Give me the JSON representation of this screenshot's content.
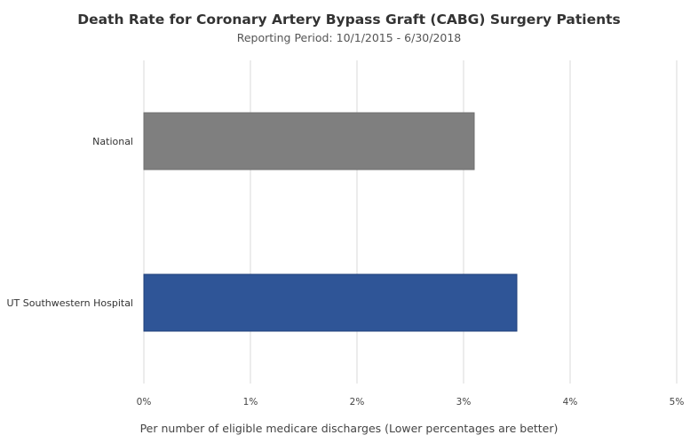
{
  "chart_data": {
    "type": "bar",
    "orientation": "horizontal",
    "title": "Death Rate for Coronary Artery Bypass Graft (CABG) Surgery Patients",
    "subtitle": "Reporting Period: 10/1/2015 - 6/30/2018",
    "categories": [
      "National",
      "UT Southwestern Hospital"
    ],
    "values": [
      3.1,
      3.5
    ],
    "value_unit": "%",
    "colors": [
      "#7f7f7f",
      "#2f5597"
    ],
    "xlabel": "Per number of eligible medicare discharges (Lower percentages are better)",
    "ylabel": "",
    "xlim": [
      0,
      5
    ],
    "xticks": [
      0,
      1,
      2,
      3,
      4,
      5
    ],
    "xtick_labels": [
      "0%",
      "1%",
      "2%",
      "3%",
      "4%",
      "5%"
    ],
    "grid": true,
    "legend": "none"
  }
}
